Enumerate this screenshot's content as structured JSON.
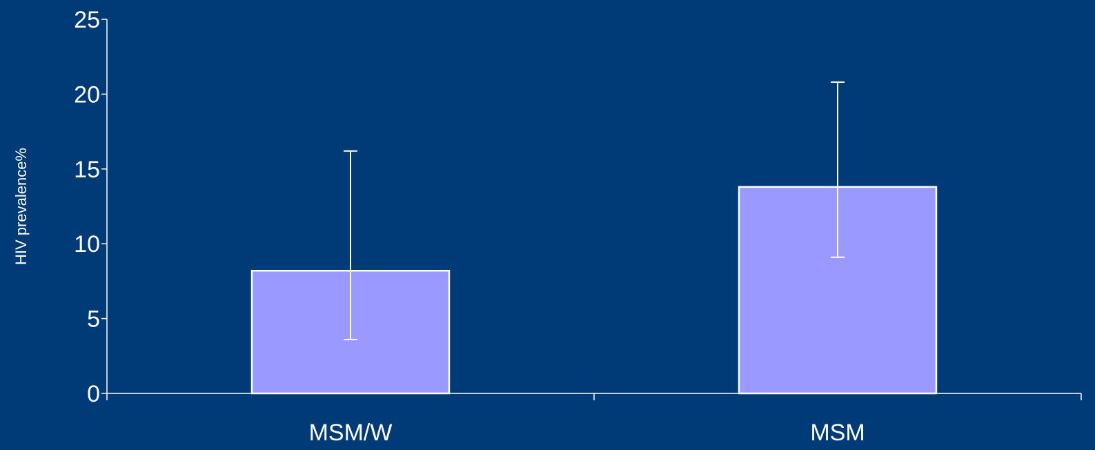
{
  "chart_data": {
    "type": "bar",
    "title": "",
    "xlabel": "",
    "ylabel": "HIV prevalence%",
    "categories": [
      "MSM/W",
      "MSM"
    ],
    "values": [
      8.2,
      13.8
    ],
    "error_low": [
      3.6,
      9.1
    ],
    "error_high": [
      16.2,
      20.8
    ],
    "ylim": [
      0,
      25
    ],
    "yticks": [
      0,
      5,
      10,
      15,
      20,
      25
    ],
    "ytick_labels": [
      "0",
      "5",
      "10",
      "15",
      "20",
      "25"
    ],
    "grid": false,
    "legend": "none"
  },
  "colors": {
    "background": "#003b77",
    "bar_fill": "#9999ff",
    "bar_stroke": "#ffffff",
    "axis": "#ffffff",
    "error_bar": "#ffffff",
    "text": "#ffffff"
  }
}
